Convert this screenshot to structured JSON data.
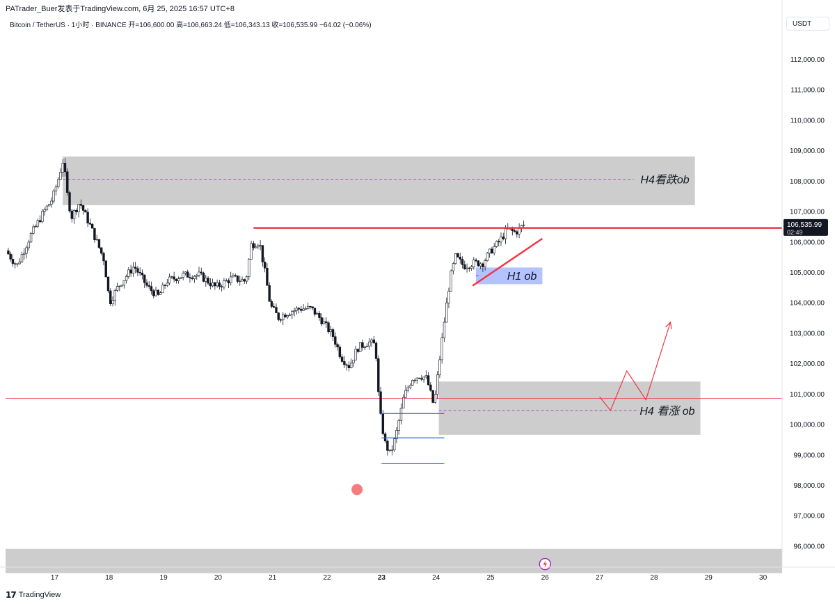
{
  "header": {
    "publisher": "PATrader_Buer发表于TradingView.com,  6月 25, 2025 16:57 UTC+8",
    "symbol_line": "Bitcoin / TetherUS · 1小时 · BINANCE  开=106,600.00  高=106,663.24  低=106,343.13  收=106,535.99  −64.02 (−0.06%)",
    "quote_currency": "USDT"
  },
  "footer": {
    "brand": "TradingView",
    "logo": "tradingview-logo-icon"
  },
  "colors": {
    "candle": "#131722",
    "resistance": "#f23645",
    "zone_gray": "#c8c8c8",
    "zone_blue": "#a5b8ff",
    "level_blue": "#2962ff",
    "path_red": "#f23645",
    "dash_purple": "#9c27b0"
  },
  "chart_data": {
    "type": "candlestick",
    "timeframe": "1h",
    "y_axis": {
      "ticks": [
        "112,000.00",
        "111,000.00",
        "110,000.00",
        "109,000.00",
        "108,000.00",
        "107,000.00",
        "106,000.00",
        "105,000.00",
        "104,000.00",
        "103,000.00",
        "102,000.00",
        "101,000.00",
        "100,000.00",
        "99,000.00",
        "98,000.00",
        "97,000.00",
        "96,000.00"
      ],
      "tick_values": [
        112000,
        111000,
        110000,
        109000,
        108000,
        107000,
        106000,
        105000,
        104000,
        103000,
        102000,
        101000,
        100000,
        99000,
        98000,
        97000,
        96000
      ],
      "range": [
        95300,
        112800
      ]
    },
    "x_axis": {
      "ticks": [
        {
          "label": "17",
          "day": 17
        },
        {
          "label": "18",
          "day": 18
        },
        {
          "label": "19",
          "day": 19
        },
        {
          "label": "20",
          "day": 20
        },
        {
          "label": "21",
          "day": 21
        },
        {
          "label": "22",
          "day": 22
        },
        {
          "label": "23",
          "day": 23,
          "bold": true
        },
        {
          "label": "24",
          "day": 24
        },
        {
          "label": "25",
          "day": 25
        },
        {
          "label": "26",
          "day": 26
        },
        {
          "label": "27",
          "day": 27
        },
        {
          "label": "28",
          "day": 28
        },
        {
          "label": "29",
          "day": 29
        },
        {
          "label": "30",
          "day": 30
        }
      ],
      "range": [
        16.1,
        30.35
      ]
    },
    "price_label": {
      "value": "106,535.99",
      "countdown": "02:49",
      "price": 106536
    },
    "keypoints": [
      {
        "d": 16.15,
        "p": 105700
      },
      {
        "d": 16.35,
        "p": 105200
      },
      {
        "d": 16.6,
        "p": 106200
      },
      {
        "d": 16.85,
        "p": 107000
      },
      {
        "d": 17.0,
        "p": 107400
      },
      {
        "d": 17.1,
        "p": 108000
      },
      {
        "d": 17.2,
        "p": 108700
      },
      {
        "d": 17.27,
        "p": 107600
      },
      {
        "d": 17.35,
        "p": 106800
      },
      {
        "d": 17.5,
        "p": 107300
      },
      {
        "d": 17.7,
        "p": 106500
      },
      {
        "d": 17.95,
        "p": 105400
      },
      {
        "d": 18.05,
        "p": 104000
      },
      {
        "d": 18.2,
        "p": 104500
      },
      {
        "d": 18.5,
        "p": 105200
      },
      {
        "d": 18.75,
        "p": 104500
      },
      {
        "d": 18.95,
        "p": 104200
      },
      {
        "d": 19.1,
        "p": 104700
      },
      {
        "d": 19.4,
        "p": 104900
      },
      {
        "d": 19.7,
        "p": 104900
      },
      {
        "d": 20.0,
        "p": 104500
      },
      {
        "d": 20.3,
        "p": 104800
      },
      {
        "d": 20.55,
        "p": 104700
      },
      {
        "d": 20.65,
        "p": 105900
      },
      {
        "d": 20.8,
        "p": 106000
      },
      {
        "d": 20.9,
        "p": 105000
      },
      {
        "d": 21.0,
        "p": 103900
      },
      {
        "d": 21.15,
        "p": 103500
      },
      {
        "d": 21.35,
        "p": 103700
      },
      {
        "d": 21.55,
        "p": 103800
      },
      {
        "d": 21.75,
        "p": 103800
      },
      {
        "d": 21.95,
        "p": 103400
      },
      {
        "d": 22.15,
        "p": 102900
      },
      {
        "d": 22.3,
        "p": 102200
      },
      {
        "d": 22.45,
        "p": 101900
      },
      {
        "d": 22.6,
        "p": 102500
      },
      {
        "d": 22.8,
        "p": 102700
      },
      {
        "d": 22.93,
        "p": 102600
      },
      {
        "d": 23.0,
        "p": 100500
      },
      {
        "d": 23.1,
        "p": 99400
      },
      {
        "d": 23.2,
        "p": 99000
      },
      {
        "d": 23.3,
        "p": 99600
      },
      {
        "d": 23.45,
        "p": 100900
      },
      {
        "d": 23.6,
        "p": 101500
      },
      {
        "d": 23.75,
        "p": 101600
      },
      {
        "d": 23.87,
        "p": 101500
      },
      {
        "d": 24.0,
        "p": 100600
      },
      {
        "d": 24.05,
        "p": 101300
      },
      {
        "d": 24.2,
        "p": 103500
      },
      {
        "d": 24.3,
        "p": 104800
      },
      {
        "d": 24.4,
        "p": 105500
      },
      {
        "d": 24.55,
        "p": 105200
      },
      {
        "d": 24.75,
        "p": 105300
      },
      {
        "d": 24.9,
        "p": 105300
      },
      {
        "d": 25.05,
        "p": 105700
      },
      {
        "d": 25.2,
        "p": 106000
      },
      {
        "d": 25.35,
        "p": 106400
      },
      {
        "d": 25.5,
        "p": 106300
      },
      {
        "d": 25.65,
        "p": 106550
      }
    ],
    "annotations": {
      "zones": [
        {
          "name": "h4-bearish-ob-zone",
          "d1": 17.15,
          "d2": 28.75,
          "top": 108800,
          "bottom": 107200,
          "mid": 108050,
          "label": "H4看跌ob",
          "color": "gray"
        },
        {
          "name": "h1-ob-zone",
          "d1": 24.73,
          "d2": 25.95,
          "top": 105150,
          "bottom": 104600,
          "mid": 104880,
          "label": "H1 ob",
          "color": "blue"
        },
        {
          "name": "h4-bullish-ob-zone",
          "d1": 24.05,
          "d2": 28.85,
          "top": 101400,
          "bottom": 99650,
          "mid": 100450,
          "label": "H4 看涨 ob",
          "color": "gray"
        },
        {
          "name": "bottom-gray-zone",
          "d1": 16.1,
          "d2": 30.35,
          "top": 95900,
          "bottom": 95100,
          "label": "",
          "color": "gray"
        }
      ],
      "resistance_line": {
        "d1": 20.65,
        "d2": 30.35,
        "price": 106450
      },
      "support_line": {
        "d1": 16.1,
        "d2": 30.35,
        "price": 100850
      },
      "trendline": {
        "d1": 24.67,
        "d2": 25.95,
        "p1": 104550,
        "p2": 106100
      },
      "blue_levels": [
        {
          "d1": 23.0,
          "d2": 24.15,
          "price": 100350
        },
        {
          "d1": 23.0,
          "d2": 24.15,
          "price": 99550
        },
        {
          "d1": 23.0,
          "d2": 24.15,
          "price": 98700
        }
      ],
      "projection_path": [
        {
          "d": 27.0,
          "p": 100900
        },
        {
          "d": 27.2,
          "p": 100450
        },
        {
          "d": 27.5,
          "p": 101750
        },
        {
          "d": 27.85,
          "p": 100800
        },
        {
          "d": 28.3,
          "p": 103350
        }
      ],
      "marker_dot": {
        "d": 22.55,
        "p": 97850
      },
      "badge_icon": {
        "name": "lightning-icon",
        "d": 26.0,
        "p": 95400
      }
    }
  }
}
